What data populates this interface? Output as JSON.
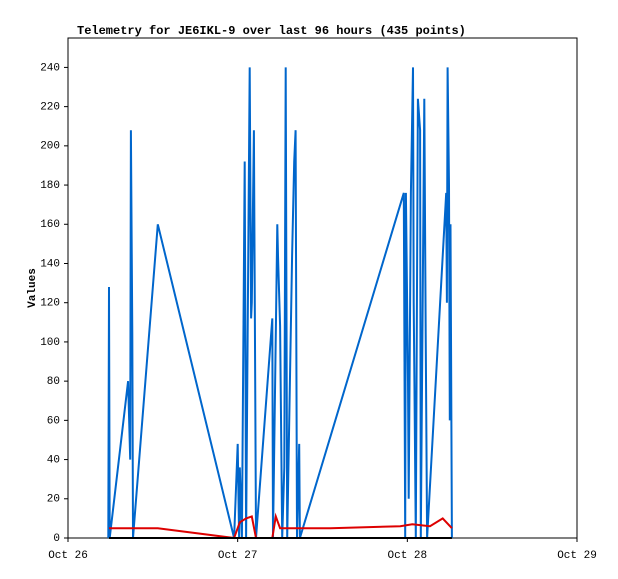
{
  "chart_data": {
    "type": "line",
    "title": "Telemetry for JE6IKL-9 over last 96 hours (435 points)",
    "ylabel": "Values",
    "xlim": [
      0,
      72
    ],
    "ylim": [
      0,
      255
    ],
    "xticks": [
      {
        "value": 0,
        "label": "Oct 26"
      },
      {
        "value": 24,
        "label": "Oct 27"
      },
      {
        "value": 48,
        "label": "Oct 28"
      },
      {
        "value": 72,
        "label": "Oct 29"
      }
    ],
    "yticks": [
      0,
      20,
      40,
      60,
      80,
      100,
      120,
      140,
      160,
      180,
      200,
      220,
      240
    ],
    "grid": false,
    "series": [
      {
        "color": "#0066cc",
        "x": [
          5.7,
          5.8,
          5.9,
          8.5,
          8.8,
          8.9,
          9.1,
          9.2,
          12.7,
          23.5,
          24.0,
          24.2,
          24.3,
          24.6,
          25.0,
          25.2,
          25.7,
          25.9,
          26.0,
          26.3,
          26.6,
          28.9,
          29.0,
          29.6,
          29.7,
          29.8,
          30.0,
          30.3,
          30.6,
          30.8,
          31.0,
          31.7,
          32.0,
          32.2,
          32.4,
          32.7,
          32.8,
          47.5,
          47.7,
          47.8,
          48.1,
          48.2,
          48.5,
          48.8,
          48.9,
          49.2,
          49.5,
          49.8,
          49.9,
          50.4,
          50.6,
          50.8,
          53.5,
          53.6,
          53.7,
          53.9,
          54.0,
          54.1,
          54.3
        ],
        "values": [
          0,
          128,
          0,
          80,
          40,
          208,
          104,
          0,
          160,
          0,
          48,
          0,
          36,
          0,
          192,
          0,
          240,
          112,
          120,
          208,
          0,
          112,
          0,
          160,
          144,
          132,
          108,
          0,
          36,
          240,
          0,
          144,
          192,
          208,
          0,
          48,
          0,
          176,
          0,
          176,
          80,
          20,
          176,
          240,
          120,
          0,
          224,
          208,
          0,
          224,
          104,
          0,
          176,
          120,
          240,
          180,
          60,
          160,
          0
        ]
      },
      {
        "color": "#dd0000",
        "x": [
          5.8,
          12.7,
          23.5,
          24.3,
          25.2,
          26.0,
          26.6,
          28.9,
          29.4,
          30.0,
          37.1,
          47.0,
          48.7,
          51.2,
          53.0,
          54.3
        ],
        "values": [
          5,
          5,
          0,
          8,
          10,
          11,
          0,
          0,
          11,
          5,
          5,
          6,
          7,
          6,
          10,
          5
        ]
      },
      {
        "color": "#000000",
        "x": [
          5.8,
          54.3
        ],
        "values": [
          0,
          0
        ]
      }
    ]
  }
}
